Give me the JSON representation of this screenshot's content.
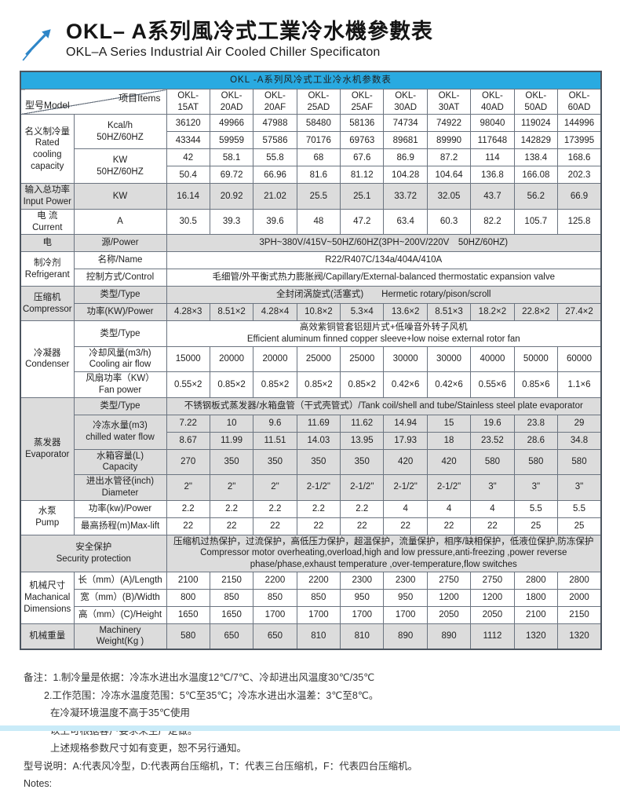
{
  "header": {
    "title_zh": "OKL– A系列風冷式工業冷水機參數表",
    "subtitle_en": "OKL–A Series Industrial Air Cooled Chiller Specificaton"
  },
  "colors": {
    "accent_cyan": "#29aae1",
    "shaded_row_gray": "#dcdcdc",
    "table_border": "#6b7480",
    "bottom_strip": "#c9ebf8",
    "logo_blue": "#2e86c8"
  },
  "icons": {
    "logo": "arrow-up-right-icon"
  },
  "table": {
    "title": "OKL -A系列风冷式工业冷水机参数表",
    "models": [
      "OKL-15AT",
      "OKL-20AD",
      "OKL-20AF",
      "OKL-25AD",
      "OKL-25AF",
      "OKL-30AD",
      "OKL-30AT",
      "OKL-40AD",
      "OKL-50AD",
      "OKL-60AD"
    ],
    "rows": [
      {
        "shaded": false,
        "cells": [
          {
            "cs": 2,
            "n": "model-items-diagonal-cell",
            "diag": {
              "left": "型号Model",
              "right": "项目Items"
            }
          },
          {
            "t": "OKL-\n15AT",
            "n": "model-header-cell"
          },
          {
            "t": "OKL-\n20AD",
            "n": "model-header-cell"
          },
          {
            "t": "OKL-\n20AF",
            "n": "model-header-cell"
          },
          {
            "t": "OKL-\n25AD",
            "n": "model-header-cell"
          },
          {
            "t": "OKL-\n25AF",
            "n": "model-header-cell"
          },
          {
            "t": "OKL-\n30AD",
            "n": "model-header-cell"
          },
          {
            "t": "OKL-\n30AT",
            "n": "model-header-cell"
          },
          {
            "t": "OKL-\n40AD",
            "n": "model-header-cell"
          },
          {
            "t": "OKL-\n50AD",
            "n": "model-header-cell"
          },
          {
            "t": "OKL-\n60AD",
            "n": "model-header-cell"
          }
        ]
      },
      {
        "shaded": false,
        "cells": [
          {
            "t": "名义制冷量\nRated\ncooling\ncapacity",
            "rs": 4,
            "n": "section-label-cell"
          },
          {
            "t": "Kcal/h\n50HZ/60HZ",
            "rs": 2,
            "n": "item-label-cell"
          },
          {
            "t": "36120"
          },
          {
            "t": "49966"
          },
          {
            "t": "47988"
          },
          {
            "t": "58480"
          },
          {
            "t": "58136"
          },
          {
            "t": "74734"
          },
          {
            "t": "74922"
          },
          {
            "t": "98040"
          },
          {
            "t": "119024"
          },
          {
            "t": "144996"
          }
        ]
      },
      {
        "shaded": false,
        "cells": [
          {
            "t": "43344"
          },
          {
            "t": "59959"
          },
          {
            "t": "57586"
          },
          {
            "t": "70176"
          },
          {
            "t": "69763"
          },
          {
            "t": "89681"
          },
          {
            "t": "89990"
          },
          {
            "t": "117648"
          },
          {
            "t": "142829"
          },
          {
            "t": "173995"
          }
        ]
      },
      {
        "shaded": false,
        "cells": [
          {
            "t": "KW\n50HZ/60HZ",
            "rs": 2,
            "n": "item-label-cell"
          },
          {
            "t": "42"
          },
          {
            "t": "58.1"
          },
          {
            "t": "55.8"
          },
          {
            "t": "68"
          },
          {
            "t": "67.6"
          },
          {
            "t": "86.9"
          },
          {
            "t": "87.2"
          },
          {
            "t": "114"
          },
          {
            "t": "138.4"
          },
          {
            "t": "168.6"
          }
        ]
      },
      {
        "shaded": false,
        "cells": [
          {
            "t": "50.4"
          },
          {
            "t": "69.72"
          },
          {
            "t": "66.96"
          },
          {
            "t": "81.6"
          },
          {
            "t": "81.12"
          },
          {
            "t": "104.28"
          },
          {
            "t": "104.64"
          },
          {
            "t": "136.8"
          },
          {
            "t": "166.08"
          },
          {
            "t": "202.3"
          }
        ]
      },
      {
        "shaded": true,
        "cells": [
          {
            "t": "输入总功率\nInput Power",
            "n": "section-label-cell"
          },
          {
            "t": "KW",
            "n": "item-label-cell"
          },
          {
            "t": "16.14"
          },
          {
            "t": "20.92"
          },
          {
            "t": "21.02"
          },
          {
            "t": "25.5"
          },
          {
            "t": "25.1"
          },
          {
            "t": "33.72"
          },
          {
            "t": "32.05"
          },
          {
            "t": "43.7"
          },
          {
            "t": "56.2"
          },
          {
            "t": "66.9"
          }
        ]
      },
      {
        "shaded": false,
        "cells": [
          {
            "t": "电 流\nCurrent",
            "n": "section-label-cell"
          },
          {
            "t": "A",
            "n": "item-label-cell"
          },
          {
            "t": "30.5"
          },
          {
            "t": "39.3"
          },
          {
            "t": "39.6"
          },
          {
            "t": "48"
          },
          {
            "t": "47.2"
          },
          {
            "t": "63.4"
          },
          {
            "t": "60.3"
          },
          {
            "t": "82.2"
          },
          {
            "t": "105.7"
          },
          {
            "t": "125.8"
          }
        ]
      },
      {
        "shaded": true,
        "cells": [
          {
            "t": "电",
            "n": "section-label-cell"
          },
          {
            "t": "源/Power",
            "n": "item-label-cell"
          },
          {
            "t": "3PH~380V/415V~50HZ/60HZ(3PH~200V/220V　50HZ/60HZ)",
            "cs": 10
          }
        ]
      },
      {
        "shaded": false,
        "cells": [
          {
            "t": "制冷剂\nRefrigerant",
            "rs": 2,
            "n": "section-label-cell"
          },
          {
            "t": "名称/Name",
            "n": "item-label-cell"
          },
          {
            "t": "R22/R407C/134a/404A/410A",
            "cs": 10
          }
        ]
      },
      {
        "shaded": false,
        "cells": [
          {
            "t": "控制方式/Control",
            "n": "item-label-cell"
          },
          {
            "t": "毛细管/外平衡式热力膨胀阀/Capillary/External-balanced thermostatic expansion valve",
            "cs": 10
          }
        ]
      },
      {
        "shaded": true,
        "cells": [
          {
            "t": "压缩机\nCompressor",
            "rs": 2,
            "n": "section-label-cell"
          },
          {
            "t": "类型/Type",
            "n": "item-label-cell"
          },
          {
            "t": "全封闭涡旋式(活塞式)　　Hermetic rotary/pison/scroll",
            "cs": 10
          }
        ]
      },
      {
        "shaded": true,
        "cells": [
          {
            "t": "功率(KW)/Power",
            "n": "item-label-cell"
          },
          {
            "t": "4.28×3"
          },
          {
            "t": "8.51×2"
          },
          {
            "t": "4.28×4"
          },
          {
            "t": "10.8×2"
          },
          {
            "t": "5.3×4"
          },
          {
            "t": "13.6×2"
          },
          {
            "t": "8.51×3"
          },
          {
            "t": "18.2×2"
          },
          {
            "t": "22.8×2"
          },
          {
            "t": "27.4×2"
          }
        ]
      },
      {
        "shaded": false,
        "cells": [
          {
            "t": "冷凝器\nCondenser",
            "rs": 3,
            "n": "section-label-cell"
          },
          {
            "t": "类型/Type",
            "n": "item-label-cell"
          },
          {
            "t": "高效紫铜管套铝翅片式+低噪音外转子风机\nEfficient aluminum finned copper sleeve+low noise external rotor fan",
            "cs": 10
          }
        ]
      },
      {
        "shaded": false,
        "cells": [
          {
            "t": "冷却风量(m3/h)\nCooling air flow",
            "n": "item-label-cell"
          },
          {
            "t": "15000"
          },
          {
            "t": "20000"
          },
          {
            "t": "20000"
          },
          {
            "t": "25000"
          },
          {
            "t": "25000"
          },
          {
            "t": "30000"
          },
          {
            "t": "30000"
          },
          {
            "t": "40000"
          },
          {
            "t": "50000"
          },
          {
            "t": "60000"
          }
        ]
      },
      {
        "shaded": false,
        "cells": [
          {
            "t": "风扇功率（KW）\nFan power",
            "n": "item-label-cell"
          },
          {
            "t": "0.55×2"
          },
          {
            "t": "0.85×2"
          },
          {
            "t": "0.85×2"
          },
          {
            "t": "0.85×2"
          },
          {
            "t": "0.85×2"
          },
          {
            "t": "0.42×6"
          },
          {
            "t": "0.42×6"
          },
          {
            "t": "0.55×6"
          },
          {
            "t": "0.85×6"
          },
          {
            "t": "1.1×6"
          }
        ]
      },
      {
        "shaded": true,
        "cells": [
          {
            "t": "蒸发器\nEvaporator",
            "rs": 5,
            "n": "section-label-cell"
          },
          {
            "t": "类型/Type",
            "n": "item-label-cell"
          },
          {
            "t": "不锈钢板式蒸发器/水箱盘管（干式壳管式）/Tank coil/shell and tube/Stainless steel plate evaporator",
            "cs": 10
          }
        ]
      },
      {
        "shaded": true,
        "cells": [
          {
            "t": "冷冻水量(m3)\nchilled water flow",
            "rs": 2,
            "n": "item-label-cell"
          },
          {
            "t": "7.22"
          },
          {
            "t": "10"
          },
          {
            "t": "9.6"
          },
          {
            "t": "11.69"
          },
          {
            "t": "11.62"
          },
          {
            "t": "14.94"
          },
          {
            "t": "15"
          },
          {
            "t": "19.6"
          },
          {
            "t": "23.8"
          },
          {
            "t": "29"
          }
        ]
      },
      {
        "shaded": true,
        "cells": [
          {
            "t": "8.67"
          },
          {
            "t": "11.99"
          },
          {
            "t": "11.51"
          },
          {
            "t": "14.03"
          },
          {
            "t": "13.95"
          },
          {
            "t": "17.93"
          },
          {
            "t": "18"
          },
          {
            "t": "23.52"
          },
          {
            "t": "28.6"
          },
          {
            "t": "34.8"
          }
        ]
      },
      {
        "shaded": true,
        "cells": [
          {
            "t": "水箱容量(L)\nCapacity",
            "n": "item-label-cell"
          },
          {
            "t": "270"
          },
          {
            "t": "350"
          },
          {
            "t": "350"
          },
          {
            "t": "350"
          },
          {
            "t": "350"
          },
          {
            "t": "420"
          },
          {
            "t": "420"
          },
          {
            "t": "580"
          },
          {
            "t": "580"
          },
          {
            "t": "580"
          }
        ]
      },
      {
        "shaded": true,
        "cells": [
          {
            "t": "进出水管径(inch)\nDiameter",
            "n": "item-label-cell"
          },
          {
            "t": "2\""
          },
          {
            "t": "2\""
          },
          {
            "t": "2\""
          },
          {
            "t": "2-1/2\""
          },
          {
            "t": "2-1/2\""
          },
          {
            "t": "2-1/2\""
          },
          {
            "t": "2-1/2\""
          },
          {
            "t": "3\""
          },
          {
            "t": "3\""
          },
          {
            "t": "3\""
          }
        ]
      },
      {
        "shaded": false,
        "cells": [
          {
            "t": "水泵\nPump",
            "rs": 2,
            "n": "section-label-cell"
          },
          {
            "t": "功率(kw)/Power",
            "n": "item-label-cell"
          },
          {
            "t": "2.2"
          },
          {
            "t": "2.2"
          },
          {
            "t": "2.2"
          },
          {
            "t": "2.2"
          },
          {
            "t": "2.2"
          },
          {
            "t": "4"
          },
          {
            "t": "4"
          },
          {
            "t": "4"
          },
          {
            "t": "5.5"
          },
          {
            "t": "5.5"
          }
        ]
      },
      {
        "shaded": false,
        "cells": [
          {
            "t": "最高扬程(m)Max-lift",
            "n": "item-label-cell"
          },
          {
            "t": "22"
          },
          {
            "t": "22"
          },
          {
            "t": "22"
          },
          {
            "t": "22"
          },
          {
            "t": "22"
          },
          {
            "t": "22"
          },
          {
            "t": "22"
          },
          {
            "t": "22"
          },
          {
            "t": "25"
          },
          {
            "t": "25"
          }
        ]
      },
      {
        "shaded": true,
        "cells": [
          {
            "t": "安全保护\nSecurity protection",
            "cs": 2,
            "n": "section-label-cell"
          },
          {
            "t": "压缩机过热保护，过流保护，高低压力保护，超温保护，流量保护，相序/缺相保护，低液位保护,防冻保护\nCompressor motor overheating,overload,high and low pressure,anti-freezing ,power reverse\nphase/phase,exhaust temperature ,over-temperature,flow switches",
            "cs": 10
          }
        ]
      },
      {
        "shaded": false,
        "cells": [
          {
            "t": "机械尺寸\nMachanical\nDimensions",
            "rs": 3,
            "n": "section-label-cell"
          },
          {
            "t": "长（mm）(A)/Length",
            "n": "item-label-cell"
          },
          {
            "t": "2100"
          },
          {
            "t": "2150"
          },
          {
            "t": "2200"
          },
          {
            "t": "2200"
          },
          {
            "t": "2300"
          },
          {
            "t": "2300"
          },
          {
            "t": "2750"
          },
          {
            "t": "2750"
          },
          {
            "t": "2800"
          },
          {
            "t": "2800"
          }
        ]
      },
      {
        "shaded": false,
        "cells": [
          {
            "t": "宽（mm）(B)/Width",
            "n": "item-label-cell"
          },
          {
            "t": "800"
          },
          {
            "t": "850"
          },
          {
            "t": "850"
          },
          {
            "t": "850"
          },
          {
            "t": "950"
          },
          {
            "t": "950"
          },
          {
            "t": "1200"
          },
          {
            "t": "1200"
          },
          {
            "t": "1800"
          },
          {
            "t": "2000"
          }
        ]
      },
      {
        "shaded": false,
        "cells": [
          {
            "t": "高（mm）(C)/Height",
            "n": "item-label-cell"
          },
          {
            "t": "1650"
          },
          {
            "t": "1650"
          },
          {
            "t": "1700"
          },
          {
            "t": "1700"
          },
          {
            "t": "1700"
          },
          {
            "t": "1700"
          },
          {
            "t": "2050"
          },
          {
            "t": "2050"
          },
          {
            "t": "2100"
          },
          {
            "t": "2150"
          }
        ]
      },
      {
        "shaded": true,
        "cells": [
          {
            "t": "机械重量",
            "n": "section-label-cell"
          },
          {
            "t": "Machinery\nWeight(Kg )",
            "n": "item-label-cell"
          },
          {
            "t": "580"
          },
          {
            "t": "650"
          },
          {
            "t": "650"
          },
          {
            "t": "810"
          },
          {
            "t": "810"
          },
          {
            "t": "890"
          },
          {
            "t": "890"
          },
          {
            "t": "1112"
          },
          {
            "t": "1320"
          },
          {
            "t": "1320"
          }
        ]
      }
    ]
  },
  "notes": {
    "lines": [
      "备注：1.制冷量是依据：冷冻水进出水温度12℃/7℃、冷却进出风温度30℃/35℃",
      "2.工作范围：冷冻水温度范围：5℃至35℃；冷冻水进出水温差：3℃至8℃。",
      "在冷凝环境温度不高于35℃使用",
      "以上可根据客户要求来生产定做。",
      "上述规格参数尺寸如有变更，恕不另行通知。",
      "型号说明：A:代表风冷型，D:代表两台压缩机，T：代表三台压缩机，F：代表四台压缩机。",
      "Notes:"
    ]
  }
}
